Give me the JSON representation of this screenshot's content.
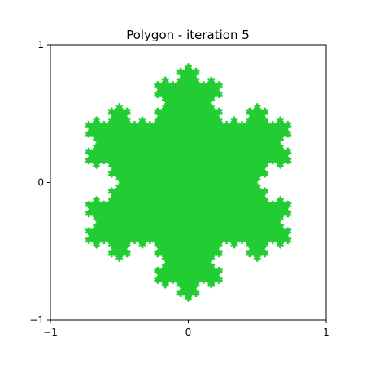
{
  "chart_data": {
    "type": "area",
    "title": "Polygon - iteration 5",
    "xlabel": "",
    "ylabel": "",
    "xlim": [
      -1,
      1
    ],
    "ylim": [
      -1,
      1
    ],
    "xticks": [
      -1,
      0,
      1
    ],
    "yticks": [
      -1,
      0,
      1
    ],
    "xtick_labels": [
      "−1",
      "0",
      "1"
    ],
    "ytick_labels": [
      "−1",
      "0",
      "1"
    ],
    "grid": false,
    "fill_color": "#22cc33",
    "shape": {
      "kind": "koch-snowflake",
      "iteration": 5,
      "vertices": [
        [
          0,
          0.866
        ],
        [
          -0.75,
          -0.433
        ],
        [
          0.75,
          -0.433
        ]
      ]
    }
  }
}
